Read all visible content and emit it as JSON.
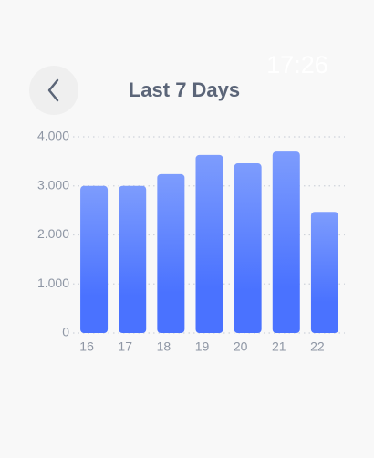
{
  "status_time": "17:26",
  "chart_data": {
    "type": "bar",
    "title": "Last 7 Days",
    "categories": [
      "16",
      "17",
      "18",
      "19",
      "20",
      "21",
      "22"
    ],
    "values": [
      3000,
      3000,
      3240,
      3630,
      3460,
      3700,
      2470
    ],
    "gradient": [
      "#7d9cfd",
      "#4a72ff"
    ],
    "ylim": [
      0,
      4000
    ],
    "yticks": [
      {
        "value": 0,
        "label": "0"
      },
      {
        "value": 1000,
        "label": "1.000"
      },
      {
        "value": 2000,
        "label": "2.000"
      },
      {
        "value": 3000,
        "label": "3.000"
      },
      {
        "value": 4000,
        "label": "4.000"
      }
    ],
    "grid": true
  }
}
